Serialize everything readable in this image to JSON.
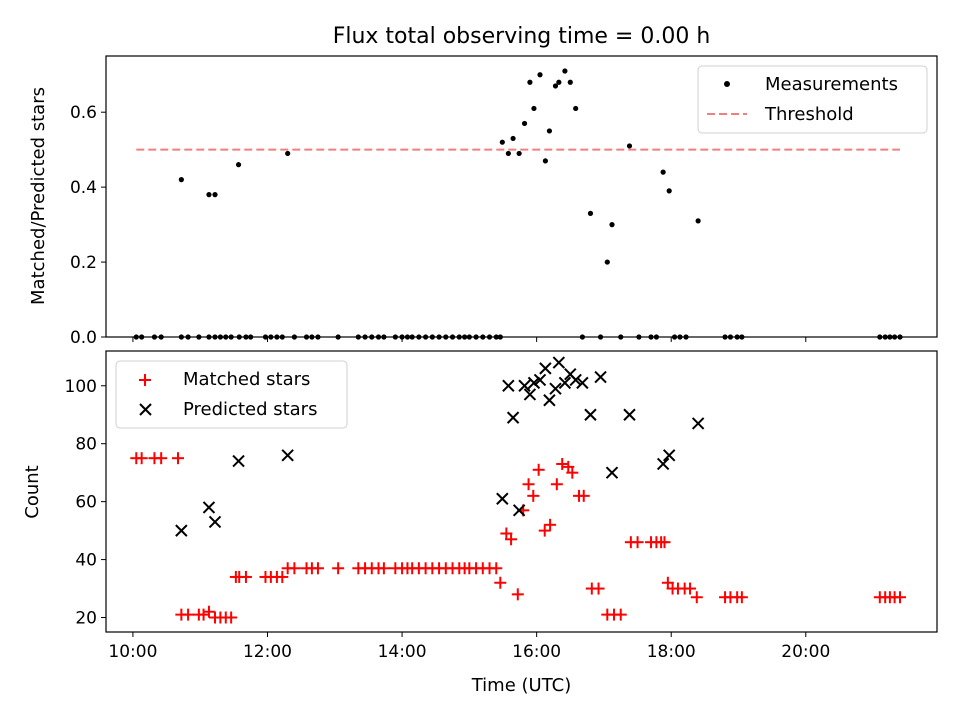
{
  "chart_data": [
    {
      "type": "scatter",
      "title": "Flux total observing time = 0.00 h",
      "xlabel": "",
      "ylabel": "Matched/Predicted stars",
      "ylim": [
        0,
        0.75
      ],
      "yticks": [
        0.0,
        0.2,
        0.4,
        0.6
      ],
      "ytick_labels": [
        "0.0",
        "0.2",
        "0.4",
        "0.6"
      ],
      "grid": false,
      "legend_position": "top-right",
      "series": [
        {
          "name": "Measurements",
          "kind": "points",
          "color": "#000000",
          "x": [
            10.05,
            10.13,
            10.32,
            10.42,
            10.72,
            10.82,
            10.98,
            11.13,
            11.22,
            11.3,
            11.38,
            11.46,
            11.58,
            11.68,
            11.75,
            11.97,
            12.05,
            12.14,
            12.22,
            12.4,
            12.58,
            12.66,
            12.75,
            13.05,
            13.35,
            13.45,
            13.55,
            13.65,
            13.73,
            13.9,
            14.0,
            14.08,
            14.15,
            14.25,
            14.35,
            14.45,
            14.55,
            14.65,
            14.75,
            14.85,
            14.93,
            15.0,
            15.1,
            15.2,
            15.3,
            15.4,
            15.46,
            10.72,
            11.13,
            11.22,
            11.57,
            12.3,
            15.49,
            15.58,
            15.65,
            15.74,
            15.82,
            15.9,
            15.96,
            16.05,
            16.13,
            16.19,
            16.28,
            16.33,
            16.42,
            16.5,
            16.58,
            16.68,
            16.8,
            16.95,
            17.05,
            17.12,
            17.25,
            17.38,
            17.52,
            17.7,
            17.78,
            17.88,
            17.97,
            18.05,
            18.13,
            18.22,
            18.4,
            18.8,
            18.88,
            18.98,
            19.05,
            21.1,
            21.18,
            21.25,
            21.32,
            21.4
          ],
          "y": [
            0,
            0,
            0,
            0,
            0,
            0,
            0,
            0,
            0,
            0,
            0,
            0,
            0,
            0,
            0,
            0,
            0,
            0,
            0,
            0,
            0,
            0,
            0,
            0,
            0,
            0,
            0,
            0,
            0,
            0,
            0,
            0,
            0,
            0,
            0,
            0,
            0,
            0,
            0,
            0,
            0,
            0,
            0,
            0,
            0,
            0,
            0,
            0.42,
            0.38,
            0.38,
            0.46,
            0.49,
            0.52,
            0.49,
            0.53,
            0.49,
            0.57,
            0.68,
            0.61,
            0.7,
            0.47,
            0.55,
            0.67,
            0.68,
            0.71,
            0.68,
            0.61,
            0,
            0.33,
            0,
            0.2,
            0.3,
            0,
            0.51,
            0,
            0,
            0,
            0.44,
            0.39,
            0,
            0,
            0,
            0.31,
            0,
            0,
            0,
            0,
            0,
            0,
            0,
            0,
            0
          ]
        },
        {
          "name": "Threshold",
          "kind": "dashed-line",
          "color": "#f08080",
          "x": [
            10.05,
            21.4
          ],
          "y": [
            0.5,
            0.5
          ]
        }
      ]
    },
    {
      "type": "scatter",
      "title": "",
      "xlabel": "Time (UTC)",
      "ylabel": "Count",
      "ylim": [
        15,
        112
      ],
      "yticks": [
        20,
        40,
        60,
        80,
        100
      ],
      "ytick_labels": [
        "20",
        "40",
        "60",
        "80",
        "100"
      ],
      "xlim": [
        9.6,
        21.95
      ],
      "xticks": [
        10,
        12,
        14,
        16,
        18,
        20
      ],
      "xtick_labels": [
        "10:00",
        "12:00",
        "14:00",
        "16:00",
        "18:00",
        "20:00"
      ],
      "grid": false,
      "legend_position": "top-left",
      "series": [
        {
          "name": "Matched stars",
          "marker": "plus",
          "color": "#ff0000",
          "x": [
            10.05,
            10.13,
            10.32,
            10.42,
            10.67,
            10.72,
            10.82,
            10.98,
            11.05,
            11.13,
            11.22,
            11.3,
            11.38,
            11.46,
            11.53,
            11.58,
            11.68,
            11.97,
            12.05,
            12.14,
            12.22,
            12.3,
            12.4,
            12.58,
            12.66,
            12.75,
            13.05,
            13.35,
            13.45,
            13.55,
            13.65,
            13.73,
            13.9,
            14.0,
            14.08,
            14.15,
            14.25,
            14.35,
            14.45,
            14.55,
            14.65,
            14.75,
            14.85,
            14.93,
            15.0,
            15.1,
            15.2,
            15.3,
            15.4,
            15.46,
            15.55,
            15.62,
            15.72,
            15.8,
            15.88,
            15.95,
            16.03,
            16.12,
            16.2,
            16.3,
            16.38,
            16.47,
            16.53,
            16.63,
            16.7,
            16.82,
            16.92,
            17.05,
            17.15,
            17.25,
            17.4,
            17.5,
            17.7,
            17.78,
            17.85,
            17.9,
            17.95,
            18.02,
            18.1,
            18.2,
            18.28,
            18.38,
            18.8,
            18.88,
            18.98,
            19.05,
            21.1,
            21.18,
            21.25,
            21.32,
            21.4
          ],
          "y": [
            75,
            75,
            75,
            75,
            75,
            21,
            21,
            21,
            21,
            22,
            20,
            20,
            20,
            20,
            34,
            34,
            34,
            34,
            34,
            34,
            34,
            37,
            37,
            37,
            37,
            37,
            37,
            37,
            37,
            37,
            37,
            37,
            37,
            37,
            37,
            37,
            37,
            37,
            37,
            37,
            37,
            37,
            37,
            37,
            37,
            37,
            37,
            37,
            37,
            32,
            49,
            47,
            28,
            57,
            66,
            62,
            71,
            50,
            52,
            66,
            73,
            72,
            70,
            62,
            62,
            30,
            30,
            21,
            21,
            21,
            46,
            46,
            46,
            46,
            46,
            46,
            32,
            30,
            30,
            30,
            30,
            27,
            27,
            27,
            27,
            27,
            27,
            27,
            27,
            27,
            27
          ]
        },
        {
          "name": "Predicted stars",
          "marker": "x",
          "color": "#000000",
          "x": [
            10.72,
            11.13,
            11.22,
            11.57,
            12.3,
            15.49,
            15.58,
            15.65,
            15.74,
            15.82,
            15.9,
            15.96,
            16.05,
            16.13,
            16.19,
            16.28,
            16.33,
            16.42,
            16.5,
            16.58,
            16.68,
            16.8,
            16.95,
            17.12,
            17.38,
            17.88,
            17.97,
            18.4
          ],
          "y": [
            50,
            58,
            53,
            74,
            76,
            61,
            100,
            89,
            57,
            100,
            97,
            101,
            102,
            106,
            95,
            99,
            108,
            101,
            104,
            102,
            101,
            90,
            103,
            70,
            90,
            73,
            76,
            87
          ]
        }
      ]
    }
  ]
}
